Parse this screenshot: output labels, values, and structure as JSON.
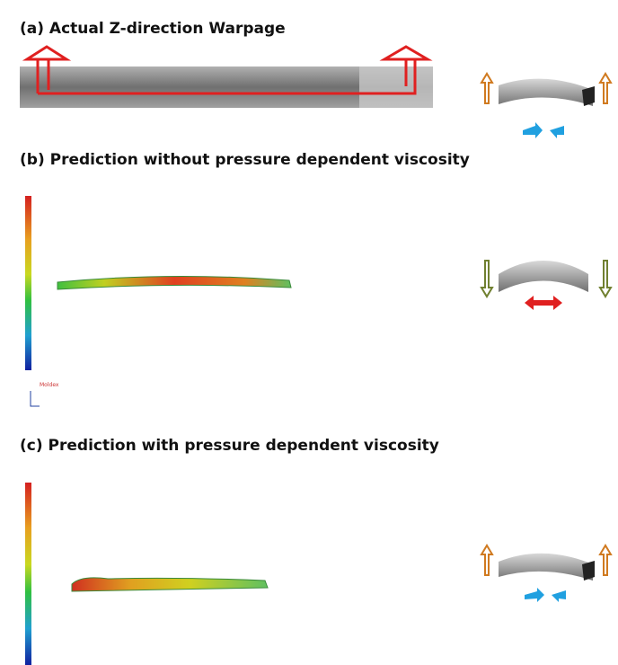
{
  "panels": [
    {
      "heading": "(a) Actual Z-direction Warpage"
    },
    {
      "heading": "(b) Prediction without pressure dependent viscosity",
      "software": "Moldex"
    },
    {
      "heading": "(c) Prediction with pressure dependent viscosity"
    }
  ]
}
